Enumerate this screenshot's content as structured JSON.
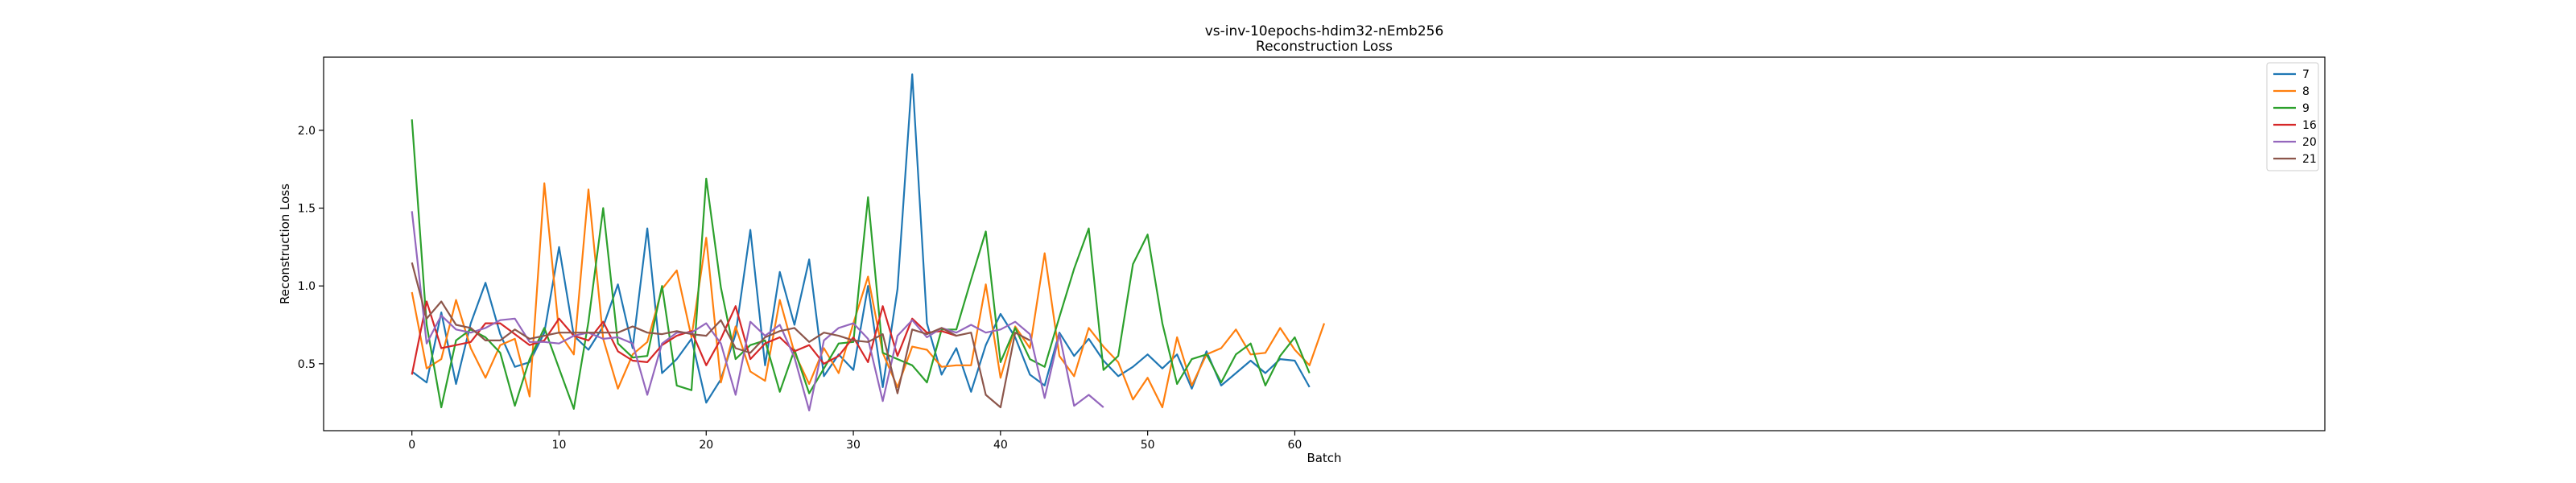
{
  "chart_data": {
    "type": "line",
    "title": "vs-inv-10epochs-hdim32-nEmb256",
    "subtitle": "Reconstruction Loss",
    "xlabel": "Batch",
    "ylabel": "Reconstruction Loss",
    "xlim": [
      -6,
      130
    ],
    "ylim": [
      0.07,
      2.47
    ],
    "xticks": [
      0,
      10,
      20,
      30,
      40,
      50,
      60
    ],
    "yticks": [
      0.5,
      1.0,
      1.5,
      2.0
    ],
    "xtick_labels": [
      "0",
      "10",
      "20",
      "30",
      "40",
      "50",
      "60"
    ],
    "ytick_labels": [
      "0.5",
      "1.0",
      "1.5",
      "2.0"
    ],
    "grid": false,
    "legend_position": "top-right",
    "series": [
      {
        "name": "7",
        "color": "#1f77b4",
        "values": [
          0.45,
          0.38,
          0.83,
          0.37,
          0.76,
          1.02,
          0.69,
          0.48,
          0.51,
          0.7,
          1.25,
          0.68,
          0.59,
          0.74,
          1.01,
          0.6,
          1.37,
          0.44,
          0.53,
          0.66,
          0.25,
          0.4,
          0.69,
          1.36,
          0.49,
          1.09,
          0.75,
          1.17,
          0.42,
          0.56,
          0.46,
          1.0,
          0.35,
          0.98,
          2.36,
          0.76,
          0.43,
          0.6,
          0.32,
          0.62,
          0.82,
          0.67,
          0.43,
          0.36,
          0.7,
          0.55,
          0.66,
          0.52,
          0.42,
          0.48,
          0.56,
          0.47,
          0.56,
          0.34,
          0.58,
          0.36,
          0.44,
          0.52,
          0.44,
          0.53,
          0.52,
          0.35
        ]
      },
      {
        "name": "8",
        "color": "#ff7f0e",
        "values": [
          0.96,
          0.47,
          0.53,
          0.91,
          0.6,
          0.41,
          0.62,
          0.66,
          0.29,
          1.66,
          0.7,
          0.56,
          1.62,
          0.66,
          0.34,
          0.56,
          0.64,
          0.98,
          1.1,
          0.67,
          1.31,
          0.38,
          0.74,
          0.45,
          0.39,
          0.91,
          0.57,
          0.37,
          0.6,
          0.44,
          0.76,
          1.06,
          0.57,
          0.35,
          0.61,
          0.59,
          0.48,
          0.49,
          0.49,
          1.01,
          0.41,
          0.74,
          0.6,
          1.21,
          0.55,
          0.42,
          0.73,
          0.61,
          0.51,
          0.27,
          0.41,
          0.22,
          0.67,
          0.36,
          0.56,
          0.6,
          0.72,
          0.56,
          0.57,
          0.73,
          0.59,
          0.49,
          0.76
        ]
      },
      {
        "name": "9",
        "color": "#2ca02c",
        "values": [
          2.07,
          0.75,
          0.22,
          0.65,
          0.72,
          0.67,
          0.57,
          0.23,
          0.53,
          0.73,
          0.47,
          0.21,
          0.77,
          1.5,
          0.63,
          0.54,
          0.55,
          1.0,
          0.36,
          0.33,
          1.69,
          0.99,
          0.53,
          0.62,
          0.65,
          0.32,
          0.59,
          0.31,
          0.47,
          0.63,
          0.64,
          1.57,
          0.57,
          0.53,
          0.49,
          0.38,
          0.72,
          0.72,
          1.04,
          1.35,
          0.51,
          0.73,
          0.53,
          0.48,
          0.8,
          1.11,
          1.37,
          0.46,
          0.55,
          1.14,
          1.33,
          0.76,
          0.37,
          0.53,
          0.56,
          0.38,
          0.56,
          0.63,
          0.36,
          0.55,
          0.67,
          0.44
        ]
      },
      {
        "name": "16",
        "color": "#d62728",
        "values": [
          0.43,
          0.9,
          0.6,
          0.62,
          0.64,
          0.76,
          0.76,
          0.69,
          0.62,
          0.65,
          0.79,
          0.68,
          0.65,
          0.77,
          0.58,
          0.52,
          0.51,
          0.62,
          0.68,
          0.71,
          0.49,
          0.66,
          0.87,
          0.53,
          0.63,
          0.67,
          0.58,
          0.62,
          0.5,
          0.55,
          0.67,
          0.51,
          0.87,
          0.55,
          0.79,
          0.7,
          0.71,
          0.68
        ]
      },
      {
        "name": "20",
        "color": "#9467bd",
        "values": [
          1.48,
          0.63,
          0.81,
          0.72,
          0.7,
          0.73,
          0.78,
          0.79,
          0.64,
          0.64,
          0.63,
          0.68,
          0.7,
          0.66,
          0.67,
          0.63,
          0.3,
          0.63,
          0.7,
          0.7,
          0.76,
          0.63,
          0.3,
          0.77,
          0.68,
          0.75,
          0.54,
          0.2,
          0.65,
          0.73,
          0.76,
          0.66,
          0.26,
          0.68,
          0.78,
          0.67,
          0.73,
          0.7,
          0.75,
          0.7,
          0.72,
          0.77,
          0.69,
          0.28,
          0.69,
          0.23,
          0.3,
          0.22
        ]
      },
      {
        "name": "21",
        "color": "#8c564b",
        "values": [
          1.15,
          0.79,
          0.9,
          0.75,
          0.73,
          0.65,
          0.65,
          0.72,
          0.66,
          0.68,
          0.7,
          0.7,
          0.7,
          0.7,
          0.7,
          0.74,
          0.7,
          0.69,
          0.71,
          0.69,
          0.68,
          0.78,
          0.6,
          0.57,
          0.67,
          0.71,
          0.73,
          0.64,
          0.7,
          0.68,
          0.65,
          0.64,
          0.69,
          0.31,
          0.72,
          0.69,
          0.73,
          0.68,
          0.7,
          0.3,
          0.22,
          0.7,
          0.65
        ]
      }
    ]
  }
}
